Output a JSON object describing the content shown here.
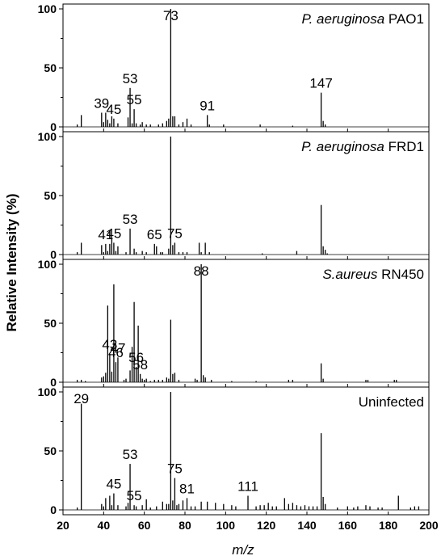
{
  "chart_data": {
    "type": "bar",
    "xlim": [
      20,
      200
    ],
    "ylim": [
      0,
      100
    ],
    "x_ticks": [
      20,
      40,
      60,
      80,
      100,
      120,
      140,
      160,
      180,
      200
    ],
    "y_ticks": [
      0,
      50,
      100
    ],
    "xlabel": "m/z",
    "ylabel": "Relative Intensity (%)",
    "grid": false,
    "panels": [
      {
        "title_italic": "P. aeruginosa",
        "title_rest": " PAO1",
        "peaks": [
          {
            "x": 27,
            "y": 2
          },
          {
            "x": 29,
            "y": 10
          },
          {
            "x": 39,
            "y": 12
          },
          {
            "x": 40,
            "y": 4
          },
          {
            "x": 41,
            "y": 12
          },
          {
            "x": 42,
            "y": 6
          },
          {
            "x": 43,
            "y": 3
          },
          {
            "x": 44,
            "y": 9
          },
          {
            "x": 45,
            "y": 7
          },
          {
            "x": 47,
            "y": 3
          },
          {
            "x": 52,
            "y": 8
          },
          {
            "x": 53,
            "y": 33
          },
          {
            "x": 54,
            "y": 3
          },
          {
            "x": 55,
            "y": 15
          },
          {
            "x": 56,
            "y": 3
          },
          {
            "x": 58,
            "y": 2
          },
          {
            "x": 59,
            "y": 4
          },
          {
            "x": 61,
            "y": 2
          },
          {
            "x": 63,
            "y": 2
          },
          {
            "x": 67,
            "y": 2
          },
          {
            "x": 69,
            "y": 3
          },
          {
            "x": 71,
            "y": 5
          },
          {
            "x": 72,
            "y": 7
          },
          {
            "x": 73,
            "y": 100
          },
          {
            "x": 74,
            "y": 9
          },
          {
            "x": 75,
            "y": 9
          },
          {
            "x": 77,
            "y": 2
          },
          {
            "x": 79,
            "y": 4
          },
          {
            "x": 81,
            "y": 7
          },
          {
            "x": 83,
            "y": 2
          },
          {
            "x": 91,
            "y": 10
          },
          {
            "x": 92,
            "y": 2
          },
          {
            "x": 99,
            "y": 2
          },
          {
            "x": 117,
            "y": 2
          },
          {
            "x": 133,
            "y": 1
          },
          {
            "x": 147,
            "y": 29
          },
          {
            "x": 148,
            "y": 5
          },
          {
            "x": 149,
            "y": 2
          }
        ],
        "labels": [
          {
            "x": 39,
            "text": "39"
          },
          {
            "x": 45,
            "text": "45"
          },
          {
            "x": 53,
            "text": "53"
          },
          {
            "x": 55,
            "text": "55"
          },
          {
            "x": 73,
            "text": "73"
          },
          {
            "x": 91,
            "text": "91"
          },
          {
            "x": 147,
            "text": "147"
          }
        ]
      },
      {
        "title_italic": "P. aeruginosa",
        "title_rest": " FRD1",
        "peaks": [
          {
            "x": 27,
            "y": 2
          },
          {
            "x": 29,
            "y": 10
          },
          {
            "x": 39,
            "y": 8
          },
          {
            "x": 40,
            "y": 2
          },
          {
            "x": 41,
            "y": 9
          },
          {
            "x": 42,
            "y": 3
          },
          {
            "x": 43,
            "y": 9
          },
          {
            "x": 44,
            "y": 14
          },
          {
            "x": 45,
            "y": 10
          },
          {
            "x": 46,
            "y": 3
          },
          {
            "x": 47,
            "y": 7
          },
          {
            "x": 51,
            "y": 2
          },
          {
            "x": 53,
            "y": 22
          },
          {
            "x": 55,
            "y": 5
          },
          {
            "x": 56,
            "y": 2
          },
          {
            "x": 59,
            "y": 3
          },
          {
            "x": 61,
            "y": 2
          },
          {
            "x": 65,
            "y": 9
          },
          {
            "x": 66,
            "y": 7
          },
          {
            "x": 68,
            "y": 2
          },
          {
            "x": 69,
            "y": 2
          },
          {
            "x": 72,
            "y": 5
          },
          {
            "x": 73,
            "y": 100
          },
          {
            "x": 74,
            "y": 8
          },
          {
            "x": 75,
            "y": 10
          },
          {
            "x": 77,
            "y": 2
          },
          {
            "x": 79,
            "y": 2
          },
          {
            "x": 81,
            "y": 2
          },
          {
            "x": 87,
            "y": 10
          },
          {
            "x": 88,
            "y": 2
          },
          {
            "x": 90,
            "y": 10
          },
          {
            "x": 92,
            "y": 2
          },
          {
            "x": 118,
            "y": 1
          },
          {
            "x": 135,
            "y": 3
          },
          {
            "x": 147,
            "y": 42
          },
          {
            "x": 148,
            "y": 7
          },
          {
            "x": 149,
            "y": 4
          },
          {
            "x": 150,
            "y": 1
          }
        ],
        "labels": [
          {
            "x": 41,
            "text": "41"
          },
          {
            "x": 45,
            "text": "45"
          },
          {
            "x": 53,
            "text": "53"
          },
          {
            "x": 65,
            "text": "65"
          },
          {
            "x": 75,
            "text": "75"
          }
        ]
      },
      {
        "title_italic": "S.aureus",
        "title_rest": " RN450",
        "peaks": [
          {
            "x": 27,
            "y": 2
          },
          {
            "x": 29,
            "y": 2
          },
          {
            "x": 31,
            "y": 1
          },
          {
            "x": 39,
            "y": 4
          },
          {
            "x": 40,
            "y": 5
          },
          {
            "x": 41,
            "y": 8
          },
          {
            "x": 42,
            "y": 65
          },
          {
            "x": 43,
            "y": 24
          },
          {
            "x": 44,
            "y": 9
          },
          {
            "x": 45,
            "y": 83
          },
          {
            "x": 46,
            "y": 17
          },
          {
            "x": 47,
            "y": 21
          },
          {
            "x": 50,
            "y": 2
          },
          {
            "x": 51,
            "y": 3
          },
          {
            "x": 53,
            "y": 10
          },
          {
            "x": 54,
            "y": 30
          },
          {
            "x": 55,
            "y": 68
          },
          {
            "x": 56,
            "y": 13
          },
          {
            "x": 57,
            "y": 48
          },
          {
            "x": 58,
            "y": 7
          },
          {
            "x": 59,
            "y": 3
          },
          {
            "x": 60,
            "y": 2
          },
          {
            "x": 61,
            "y": 3
          },
          {
            "x": 63,
            "y": 1
          },
          {
            "x": 65,
            "y": 2
          },
          {
            "x": 67,
            "y": 2
          },
          {
            "x": 69,
            "y": 2
          },
          {
            "x": 71,
            "y": 4
          },
          {
            "x": 72,
            "y": 3
          },
          {
            "x": 73,
            "y": 53
          },
          {
            "x": 74,
            "y": 7
          },
          {
            "x": 75,
            "y": 8
          },
          {
            "x": 77,
            "y": 2
          },
          {
            "x": 85,
            "y": 3
          },
          {
            "x": 86,
            "y": 2
          },
          {
            "x": 88,
            "y": 100
          },
          {
            "x": 89,
            "y": 6
          },
          {
            "x": 90,
            "y": 4
          },
          {
            "x": 93,
            "y": 2
          },
          {
            "x": 103,
            "y": 1
          },
          {
            "x": 115,
            "y": 1
          },
          {
            "x": 131,
            "y": 2
          },
          {
            "x": 133,
            "y": 2
          },
          {
            "x": 147,
            "y": 16
          },
          {
            "x": 148,
            "y": 3
          },
          {
            "x": 169,
            "y": 2
          },
          {
            "x": 170,
            "y": 2
          },
          {
            "x": 183,
            "y": 2
          },
          {
            "x": 184,
            "y": 2
          }
        ],
        "labels": [
          {
            "x": 43,
            "text": "43"
          },
          {
            "x": 46,
            "text": "46"
          },
          {
            "x": 47,
            "text": "47"
          },
          {
            "x": 56,
            "text": "56"
          },
          {
            "x": 58,
            "text": "58"
          },
          {
            "x": 88,
            "text": "88"
          }
        ]
      },
      {
        "title_italic": "",
        "title_rest": "Uninfected",
        "peaks": [
          {
            "x": 27,
            "y": 2
          },
          {
            "x": 29,
            "y": 90
          },
          {
            "x": 39,
            "y": 5
          },
          {
            "x": 40,
            "y": 3
          },
          {
            "x": 41,
            "y": 10
          },
          {
            "x": 43,
            "y": 12
          },
          {
            "x": 44,
            "y": 4
          },
          {
            "x": 45,
            "y": 14
          },
          {
            "x": 47,
            "y": 4
          },
          {
            "x": 51,
            "y": 3
          },
          {
            "x": 52,
            "y": 6
          },
          {
            "x": 53,
            "y": 39
          },
          {
            "x": 55,
            "y": 4
          },
          {
            "x": 56,
            "y": 3
          },
          {
            "x": 59,
            "y": 4
          },
          {
            "x": 61,
            "y": 9
          },
          {
            "x": 63,
            "y": 2
          },
          {
            "x": 66,
            "y": 3
          },
          {
            "x": 69,
            "y": 7
          },
          {
            "x": 71,
            "y": 5
          },
          {
            "x": 72,
            "y": 5
          },
          {
            "x": 73,
            "y": 100
          },
          {
            "x": 74,
            "y": 8
          },
          {
            "x": 75,
            "y": 27
          },
          {
            "x": 76,
            "y": 4
          },
          {
            "x": 77,
            "y": 5
          },
          {
            "x": 79,
            "y": 8
          },
          {
            "x": 81,
            "y": 10
          },
          {
            "x": 83,
            "y": 3
          },
          {
            "x": 85,
            "y": 3
          },
          {
            "x": 88,
            "y": 7
          },
          {
            "x": 91,
            "y": 7
          },
          {
            "x": 95,
            "y": 6
          },
          {
            "x": 99,
            "y": 5
          },
          {
            "x": 103,
            "y": 4
          },
          {
            "x": 105,
            "y": 3
          },
          {
            "x": 111,
            "y": 12
          },
          {
            "x": 115,
            "y": 3
          },
          {
            "x": 117,
            "y": 4
          },
          {
            "x": 119,
            "y": 4
          },
          {
            "x": 121,
            "y": 6
          },
          {
            "x": 123,
            "y": 3
          },
          {
            "x": 125,
            "y": 3
          },
          {
            "x": 129,
            "y": 10
          },
          {
            "x": 131,
            "y": 5
          },
          {
            "x": 133,
            "y": 6
          },
          {
            "x": 135,
            "y": 4
          },
          {
            "x": 137,
            "y": 3
          },
          {
            "x": 139,
            "y": 4
          },
          {
            "x": 141,
            "y": 3
          },
          {
            "x": 143,
            "y": 3
          },
          {
            "x": 145,
            "y": 3
          },
          {
            "x": 147,
            "y": 65
          },
          {
            "x": 148,
            "y": 11
          },
          {
            "x": 149,
            "y": 5
          },
          {
            "x": 155,
            "y": 2
          },
          {
            "x": 160,
            "y": 3
          },
          {
            "x": 163,
            "y": 2
          },
          {
            "x": 165,
            "y": 3
          },
          {
            "x": 169,
            "y": 4
          },
          {
            "x": 171,
            "y": 3
          },
          {
            "x": 175,
            "y": 2
          },
          {
            "x": 177,
            "y": 2
          },
          {
            "x": 185,
            "y": 12
          },
          {
            "x": 191,
            "y": 2
          },
          {
            "x": 193,
            "y": 3
          },
          {
            "x": 195,
            "y": 3
          }
        ],
        "labels": [
          {
            "x": 29,
            "text": "29"
          },
          {
            "x": 45,
            "text": "45"
          },
          {
            "x": 53,
            "text": "53"
          },
          {
            "x": 55,
            "text": "55"
          },
          {
            "x": 75,
            "text": "75"
          },
          {
            "x": 81,
            "text": "81"
          },
          {
            "x": 111,
            "text": "111"
          }
        ]
      }
    ]
  }
}
